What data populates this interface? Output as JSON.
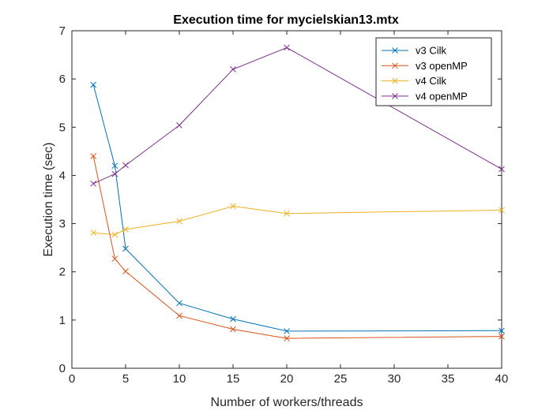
{
  "chart_data": {
    "type": "line",
    "title": "Execution time for mycielskian13.mtx",
    "xlabel": "Number of workers/threads",
    "ylabel": "Execution time (sec)",
    "x": [
      2,
      4,
      5,
      10,
      15,
      20,
      40
    ],
    "xlim": [
      0,
      40
    ],
    "ylim": [
      0,
      7
    ],
    "xticks": [
      0,
      5,
      10,
      15,
      20,
      25,
      30,
      35,
      40
    ],
    "yticks": [
      0,
      1,
      2,
      3,
      4,
      5,
      6,
      7
    ],
    "grid": false,
    "legend_position": "top-right",
    "marker": "x",
    "series": [
      {
        "name": "v3 Cilk",
        "color": "#0072BD",
        "values": [
          5.88,
          4.2,
          2.48,
          1.35,
          1.02,
          0.77,
          0.78
        ]
      },
      {
        "name": "v3 openMP",
        "color": "#D95319",
        "values": [
          4.4,
          2.27,
          2.01,
          1.09,
          0.81,
          0.62,
          0.66
        ]
      },
      {
        "name": "v4 Cilk",
        "color": "#EDB120",
        "values": [
          2.81,
          2.77,
          2.88,
          3.05,
          3.36,
          3.21,
          3.28
        ]
      },
      {
        "name": "v4 openMP",
        "color": "#7E2F8E",
        "values": [
          3.83,
          4.03,
          4.21,
          5.04,
          6.2,
          6.65,
          4.13
        ]
      }
    ]
  }
}
